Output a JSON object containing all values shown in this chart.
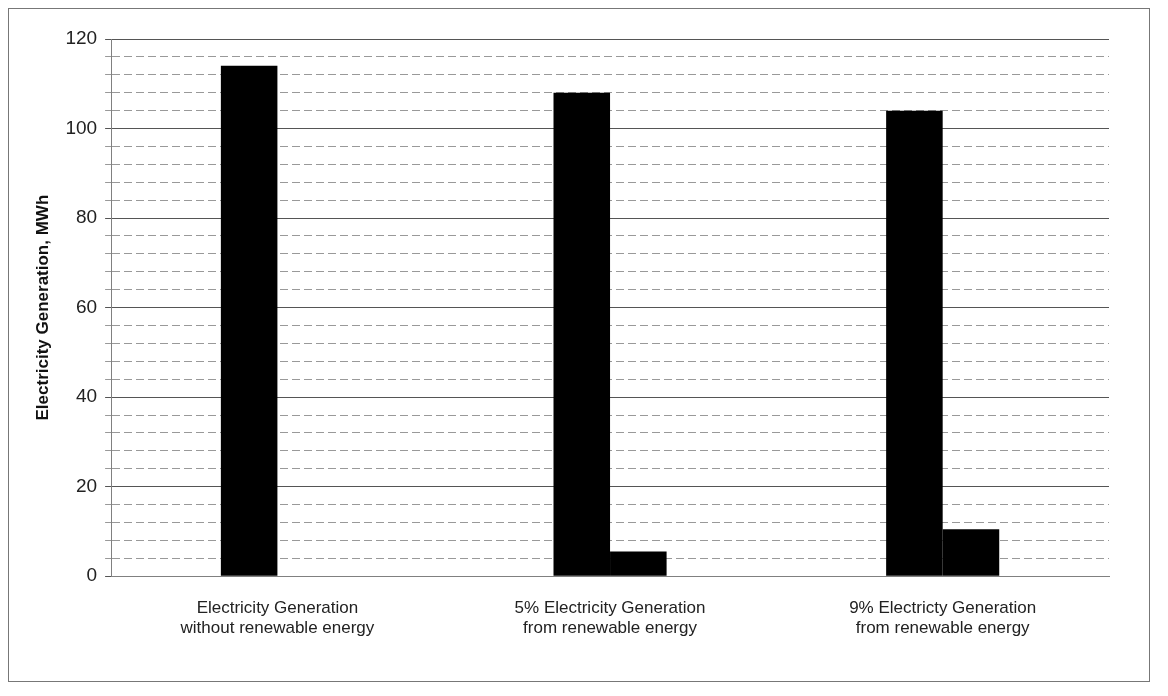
{
  "chart_data": {
    "type": "bar",
    "ylabel": "Electricity Generation, MWh",
    "categories": [
      [
        "Electricity Generation",
        "without renewable energy"
      ],
      [
        "5% Electricity Generation",
        "from renewable energy"
      ],
      [
        "9% Electricty Generation",
        "from renewable energy"
      ]
    ],
    "series": [
      {
        "color": "#000000",
        "values": [
          114,
          108,
          104
        ]
      },
      {
        "color": "#000000",
        "values": [
          null,
          5.5,
          10.5
        ]
      }
    ],
    "ylim": [
      0,
      120
    ],
    "yticks": [
      0,
      {
        "value": 4,
        "label": null
      },
      {
        "value": 8,
        "label": null
      },
      {
        "value": 12,
        "label": null
      },
      {
        "value": 16,
        "label": null
      },
      20,
      {
        "value": 24,
        "label": null
      },
      {
        "value": 28,
        "label": null
      },
      {
        "value": 32,
        "label": null
      },
      {
        "value": 36,
        "label": null
      },
      40,
      {
        "value": 44,
        "label": null
      },
      {
        "value": 48,
        "label": null
      },
      {
        "value": 52,
        "label": null
      },
      {
        "value": 56,
        "label": null
      },
      60,
      {
        "value": 64,
        "label": null
      },
      {
        "value": 68,
        "label": null
      },
      {
        "value": 72,
        "label": null
      },
      {
        "value": 76,
        "label": null
      },
      80,
      {
        "value": 84,
        "label": null
      },
      {
        "value": 88,
        "label": null
      },
      {
        "value": 92,
        "label": null
      },
      {
        "value": 96,
        "label": null
      },
      100,
      {
        "value": 104,
        "label": null
      },
      {
        "value": 108,
        "label": null
      },
      {
        "value": 112,
        "label": null
      },
      {
        "value": 116,
        "label": null
      },
      120
    ],
    "grid": "y",
    "legend": false
  }
}
